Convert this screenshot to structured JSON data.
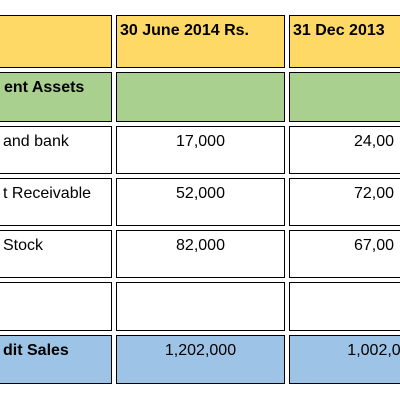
{
  "table": {
    "columns": [
      "30 June 2014 Rs.",
      "31 Dec 2013"
    ],
    "section": "ent Assets",
    "rows": [
      [
        "and bank",
        "17,000",
        "24,00"
      ],
      [
        "t Receivable",
        "52,000",
        "72,00"
      ],
      [
        "Stock",
        "82,000",
        "67,00"
      ]
    ],
    "total": [
      "dit Sales",
      "1,202,000",
      "1,002,0"
    ]
  }
}
